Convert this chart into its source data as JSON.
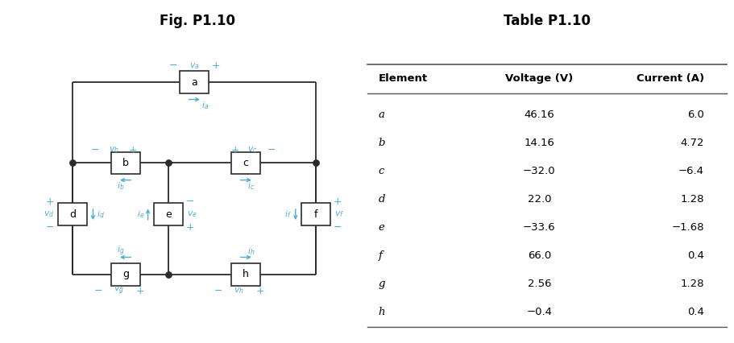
{
  "fig_title": "Fig. P1.10",
  "table_title": "Table P1.10",
  "col_headers": [
    "Element",
    "Voltage (V)",
    "Current (A)"
  ],
  "rows": [
    [
      "a",
      "46.16",
      "6.0"
    ],
    [
      "b",
      "14.16",
      "4.72"
    ],
    [
      "c",
      "−32.0",
      "−6.4"
    ],
    [
      "d",
      "22.0",
      "1.28"
    ],
    [
      "e",
      "−33.6",
      "−1.68"
    ],
    [
      "f",
      "66.0",
      "0.4"
    ],
    [
      "g",
      "2.56",
      "1.28"
    ],
    [
      "h",
      "−0.4",
      "0.4"
    ]
  ],
  "circuit_color": "#4aafd4",
  "wire_color": "#2b2b2b",
  "bg_color": "#ffffff"
}
